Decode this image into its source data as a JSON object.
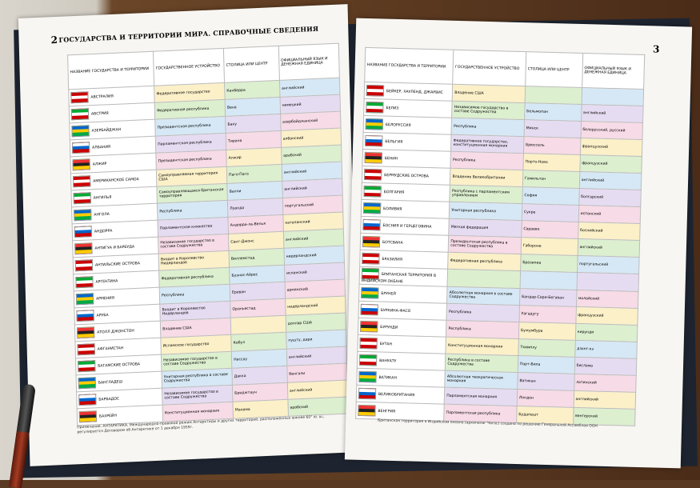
{
  "header": {
    "left_page_number": "2",
    "right_page_number": "3",
    "title": "ГОСУДАРСТВА И ТЕРРИТОРИИ МИРА. СПРАВОЧНЫЕ СВЕДЕНИЯ"
  },
  "columns": [
    "НАЗВАНИЕ ГОСУДАРСТВА И ТЕРРИТОРИИ",
    "ГОСУДАРСТВЕННОЕ УСТРОЙСТВО",
    "СТОЛИЦА ИЛИ ЦЕНТР",
    "ОФИЦИАЛЬНЫЙ ЯЗЫК И ДЕНЕЖНАЯ ЕДИНИЦА"
  ],
  "left_table": {
    "rows": [
      [
        "АВСТРАЛИЯ",
        "Федеративное государство",
        "Канберра",
        "английский"
      ],
      [
        "АВСТРИЯ",
        "Федеративная республика",
        "Вена",
        "немецкий"
      ],
      [
        "АЗЕРБАЙДЖАН",
        "Президентская республика",
        "Баку",
        "азербайджанский"
      ],
      [
        "АЛБАНИЯ",
        "Парламентская республика",
        "Тирана",
        "албанский"
      ],
      [
        "АЛЖИР",
        "Президентская республика",
        "Алжир",
        "арабский"
      ],
      [
        "АМЕРИКАНСКОЕ САМОА",
        "Самоуправляемая территория США",
        "Паго-Паго",
        "английский"
      ],
      [
        "АНГИЛЬЯ",
        "Самоуправляющаяся британская территория",
        "Валли",
        "английский"
      ],
      [
        "АНГОЛА",
        "Республика",
        "Луанда",
        "португальский"
      ],
      [
        "АНДОРРА",
        "Парламентское княжество",
        "Андорра-ла-Велья",
        "каталанский"
      ],
      [
        "АНТИГУА И БАРБУДА",
        "Независимое государство в составе Содружества",
        "Сент-Джонс",
        "английский"
      ],
      [
        "АНТИЛЬСКИЕ ОСТРОВА",
        "Входит в Королевство Нидерландов",
        "Виллемстад",
        "нидерландский"
      ],
      [
        "АРГЕНТИНА",
        "Федеративная республика",
        "Буэнос-Айрес",
        "испанский"
      ],
      [
        "АРМЕНИЯ",
        "Республика",
        "Ереван",
        "армянский"
      ],
      [
        "АРУБА",
        "Входит в Королевство Нидерландов",
        "Ораньестад",
        "нидерландский"
      ],
      [
        "АТОЛЛ ДЖОНСТОН",
        "Владение США",
        "",
        "доллар США"
      ],
      [
        "АФГАНИСТАН",
        "Исламское государство",
        "Кабул",
        "пушту, дари"
      ],
      [
        "БАГАМСКИЕ ОСТРОВА",
        "Независимое государство в составе Содружества",
        "Нассау",
        "английский"
      ],
      [
        "БАНГЛАДЕШ",
        "Унитарная республика в составе Содружества",
        "Дакка",
        "бенгали"
      ],
      [
        "БАРБАДОС",
        "Независимое государство в составе Содружества",
        "Бриджтаун",
        "английский"
      ],
      [
        "БАХРЕЙН",
        "Конституционная монархия",
        "Манама",
        "арабский"
      ]
    ]
  },
  "right_table": {
    "rows": [
      [
        "БЕЙКЕР, ХАУЛЕНД, ДЖАРВИС",
        "Владение США",
        "",
        ""
      ],
      [
        "БЕЛИЗ",
        "Независимое государство в составе Содружества",
        "Бельмопан",
        "английский"
      ],
      [
        "БЕЛОРУССИЯ",
        "Республика",
        "Минск",
        "белорусский, русский"
      ],
      [
        "БЕЛЬГИЯ",
        "Федеративное государство, конституционная монархия",
        "Брюссель",
        "французский"
      ],
      [
        "БЕНИН",
        "Республика",
        "Порто-Ново",
        "французский"
      ],
      [
        "БЕРМУДСКИЕ ОСТРОВА",
        "Владение Великобритании",
        "Гамильтон",
        "английский"
      ],
      [
        "БОЛГАРИЯ",
        "Республика с парламентским управлением",
        "София",
        "болгарский"
      ],
      [
        "БОЛИВИЯ",
        "Унитарная республика",
        "Сукре",
        "испанский"
      ],
      [
        "БОСНИЯ И ГЕРЦЕГОВИНА",
        "Мягкая федерация",
        "Сараево",
        "боснийский"
      ],
      [
        "БОТСВАНА",
        "Президентская республика в составе Содружества",
        "Габороне",
        "английский"
      ],
      [
        "БРАЗИЛИЯ",
        "Федеративная республика",
        "Бразилиа",
        "португальский"
      ],
      [
        "БРИТАНСКАЯ ТЕРРИТОРИЯ В ИНДИЙСКОМ ОКЕАНЕ",
        "",
        "",
        ""
      ],
      [
        "БРУНЕЙ",
        "Абсолютная монархия в составе Содружества",
        "Бандар-Сери-Бегаван",
        "малайский"
      ],
      [
        "БУРКИНА-ФАСО",
        "Республика",
        "Уагадугу",
        "французский"
      ],
      [
        "БУРУНДИ",
        "Республика",
        "Бужумбура",
        "кирунди"
      ],
      [
        "БУТАН",
        "Конституционная монархия",
        "Тхимпху",
        "дзонг-кэ"
      ],
      [
        "ВАНУАТУ",
        "Республика в составе Содружества",
        "Порт-Вила",
        "бислама"
      ],
      [
        "ВАТИКАН",
        "Абсолютная теократическая монархия",
        "Ватикан",
        "латинский"
      ],
      [
        "ВЕЛИКОБРИТАНИЯ",
        "Парламентская монархия",
        "Лондон",
        "английский"
      ],
      [
        "ВЕНГРИЯ",
        "Парламентская республика",
        "Будапешт",
        "венгерский"
      ]
    ]
  },
  "left_note": "Примечание. АНТАРКТИКА. Международно-правовой режим Антарктиды и других территорий, расположенных южнее 60° ю. ш., регулируется Договором об Антарктике от 1 декабря 1959г.",
  "right_note": "Британская территория в Индийском океане (архипелаг Чагос) создана по решению Генеральной Ассамблеи ООН"
}
